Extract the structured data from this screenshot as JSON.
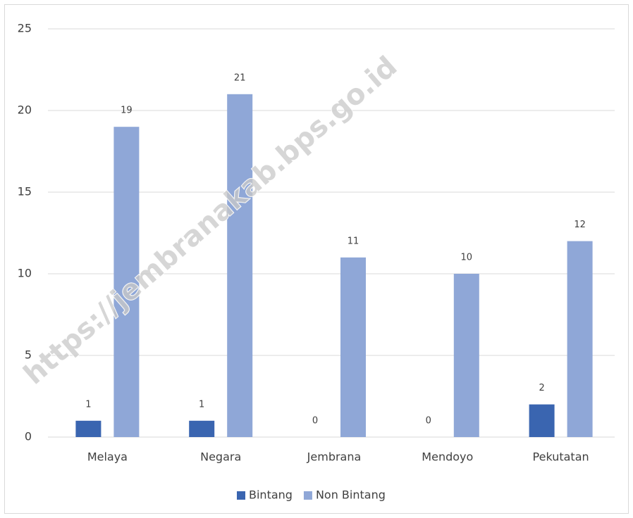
{
  "chart_data": {
    "type": "bar",
    "categories": [
      "Melaya",
      "Negara",
      "Jembrana",
      "Mendoyo",
      "Pekutatan"
    ],
    "series": [
      {
        "name": "Bintang",
        "color": "#3a65b0",
        "values": [
          1,
          1,
          0,
          0,
          2
        ]
      },
      {
        "name": "Non Bintang",
        "color": "#8fa7d7",
        "values": [
          19,
          21,
          11,
          10,
          12
        ]
      }
    ],
    "ylim": [
      0,
      25
    ],
    "yticks": [
      0,
      5,
      10,
      15,
      20,
      25
    ],
    "grid": true,
    "legend": "bottom",
    "watermark": "https://jembranakab.bps.go.id"
  }
}
